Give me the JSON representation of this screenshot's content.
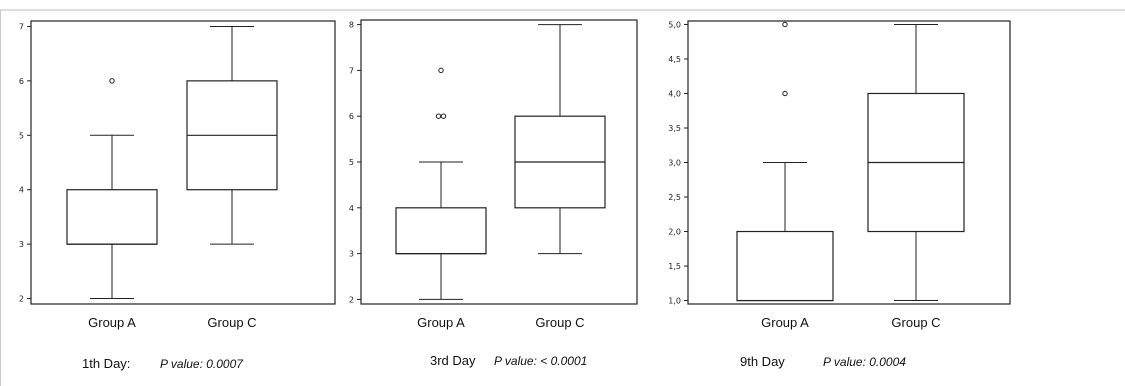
{
  "chart_data": [
    {
      "type": "box",
      "title": "",
      "xlabel": "",
      "ylabel": "",
      "ylim": [
        1.9,
        7.1
      ],
      "yticks": [
        2,
        3,
        4,
        5,
        6,
        7
      ],
      "yticklabels": [
        "2",
        "3",
        "4",
        "5",
        "6",
        "7"
      ],
      "categories": [
        "Group A",
        "Group C"
      ],
      "boxes": [
        {
          "name": "Group A",
          "min": 2,
          "q1": 3,
          "median": 3,
          "q3": 4,
          "max": 5,
          "outliers": [
            6
          ]
        },
        {
          "name": "Group C",
          "min": 3,
          "q1": 4,
          "median": 5,
          "q3": 6,
          "max": 7,
          "outliers": []
        }
      ],
      "caption_day": "1th Day:",
      "caption_p": "P value: 0.0007"
    },
    {
      "type": "box",
      "title": "",
      "xlabel": "",
      "ylabel": "",
      "ylim": [
        1.9,
        8.1
      ],
      "yticks": [
        2,
        3,
        4,
        5,
        6,
        7,
        8
      ],
      "yticklabels": [
        "2",
        "3",
        "4",
        "5",
        "6",
        "7",
        "8"
      ],
      "categories": [
        "Group A",
        "Group C"
      ],
      "boxes": [
        {
          "name": "Group A",
          "min": 2,
          "q1": 3,
          "median": 3,
          "q3": 4,
          "max": 5,
          "outliers": [
            6,
            6,
            7
          ]
        },
        {
          "name": "Group C",
          "min": 3,
          "q1": 4,
          "median": 5,
          "q3": 6,
          "max": 8,
          "outliers": []
        }
      ],
      "caption_day": "3rd Day",
      "caption_p": "P value: < 0.0001"
    },
    {
      "type": "box",
      "title": "",
      "xlabel": "",
      "ylabel": "",
      "ylim": [
        0.95,
        5.05
      ],
      "yticks": [
        1.0,
        1.5,
        2.0,
        2.5,
        3.0,
        3.5,
        4.0,
        4.5,
        5.0
      ],
      "yticklabels": [
        "1,0",
        "1,5",
        "2,0",
        "2,5",
        "3,0",
        "3,5",
        "4,0",
        "4,5",
        "5,0"
      ],
      "categories": [
        "Group A",
        "Group C"
      ],
      "boxes": [
        {
          "name": "Group A",
          "min": 1,
          "q1": 1,
          "median": 1,
          "q3": 2,
          "max": 3,
          "outliers": [
            4,
            5
          ]
        },
        {
          "name": "Group C",
          "min": 1,
          "q1": 2,
          "median": 3,
          "q3": 4,
          "max": 5,
          "outliers": []
        }
      ],
      "caption_day": "9th Day",
      "caption_p": "P value: 0.0004"
    }
  ]
}
